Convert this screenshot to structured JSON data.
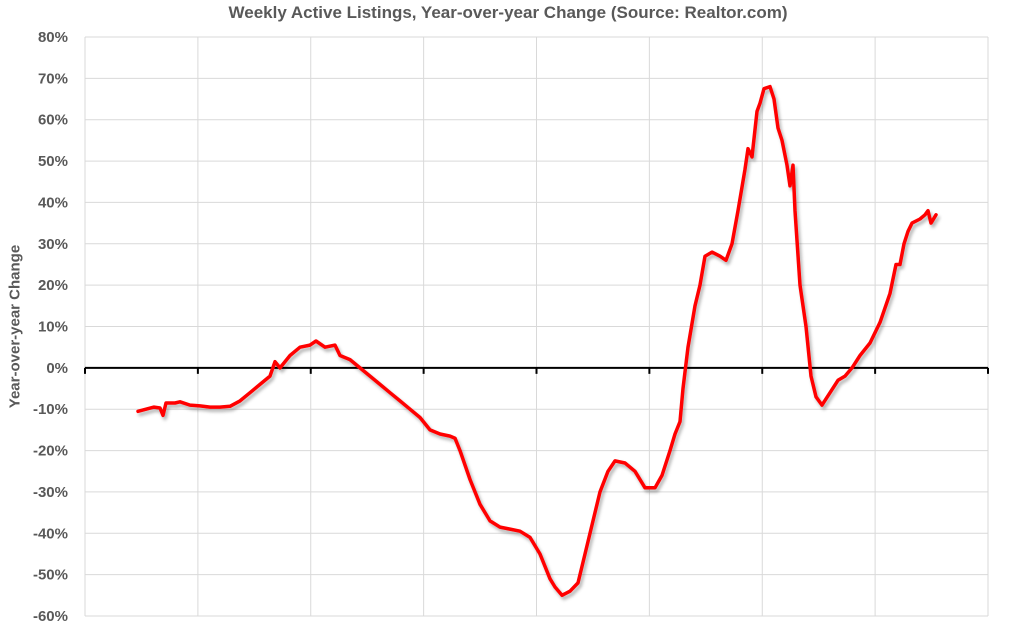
{
  "chart_data": {
    "type": "line",
    "title": "Weekly Active Listings, Year-over-year Change (Source: Realtor.com)",
    "xlabel": "",
    "ylabel": "Year-over-year Change",
    "ylim": [
      -60,
      80
    ],
    "yticks": [
      "80%",
      "70%",
      "60%",
      "50%",
      "40%",
      "30%",
      "20%",
      "10%",
      "0%",
      "-10%",
      "-20%",
      "-30%",
      "-40%",
      "-50%",
      "-60%"
    ],
    "ytick_values": [
      80,
      70,
      60,
      50,
      40,
      30,
      20,
      10,
      0,
      -10,
      -20,
      -30,
      -40,
      -50,
      -60
    ],
    "grid": true,
    "x_intervals": 8,
    "legend": "none",
    "series": [
      {
        "color": "#FF0000",
        "values": [
          -10.5,
          -10,
          -9.5,
          -9.7,
          -11.5,
          -8.5,
          -8.5,
          -8.2,
          -9,
          -9.2,
          -9.5,
          -9.5,
          -9.3,
          -8,
          -6,
          -4,
          -2,
          1.5,
          0,
          3,
          5,
          5.5,
          6.5,
          5,
          5.5,
          3,
          2,
          0,
          -2,
          -4,
          -6,
          -8,
          -10,
          -12,
          -15,
          -16,
          -16.5,
          -17,
          -20,
          -27,
          -33,
          -37,
          -38.5,
          -39,
          -39.5,
          -41,
          -45,
          -51,
          -53,
          -55,
          -54,
          -52,
          -45,
          -38,
          -30,
          -25,
          -22.5,
          -23,
          -25,
          -29,
          -29,
          -26,
          -20,
          -16,
          -13,
          -5,
          5,
          15,
          20,
          27,
          28,
          27,
          26,
          30,
          38,
          48,
          53,
          51,
          62,
          64,
          67.5,
          68,
          65,
          58,
          55,
          49,
          44,
          49,
          38,
          20,
          10,
          -2,
          -7,
          -9,
          -6,
          -3,
          -2,
          0,
          3,
          6,
          11,
          18,
          25,
          25,
          30,
          33,
          35,
          36,
          37,
          38,
          35,
          37
        ]
      }
    ]
  }
}
